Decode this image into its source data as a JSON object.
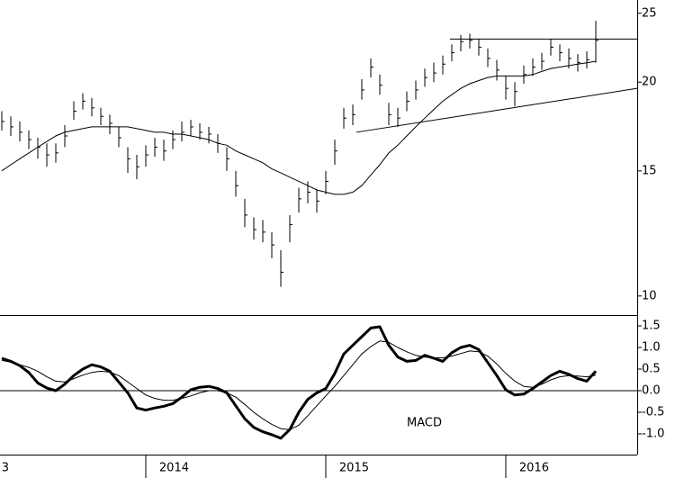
{
  "chart_data": [
    {
      "type": "ohlc",
      "log_scale": true,
      "color": "#000000",
      "ylim": [
        9.4,
        26.1
      ],
      "yticks": [
        10,
        15,
        20,
        25
      ],
      "xlim": [
        2013.19,
        2016.73
      ],
      "x": [
        2013.2,
        2013.25,
        2013.3,
        2013.35,
        2013.4,
        2013.45,
        2013.5,
        2013.55,
        2013.6,
        2013.65,
        2013.7,
        2013.75,
        2013.8,
        2013.85,
        2013.9,
        2013.95,
        2014.0,
        2014.05,
        2014.1,
        2014.15,
        2014.2,
        2014.25,
        2014.3,
        2014.35,
        2014.4,
        2014.45,
        2014.5,
        2014.55,
        2014.6,
        2014.65,
        2014.7,
        2014.75,
        2014.8,
        2014.85,
        2014.9,
        2014.95,
        2015.0,
        2015.05,
        2015.1,
        2015.15,
        2015.2,
        2015.25,
        2015.3,
        2015.35,
        2015.4,
        2015.45,
        2015.5,
        2015.55,
        2015.6,
        2015.65,
        2015.7,
        2015.75,
        2015.8,
        2015.85,
        2015.9,
        2015.95,
        2016.0,
        2016.05,
        2016.1,
        2016.15,
        2016.2,
        2016.25,
        2016.3,
        2016.35,
        2016.4,
        2016.45,
        2016.5
      ],
      "high": [
        18.2,
        17.9,
        17.6,
        17.1,
        16.7,
        16.4,
        16.4,
        17.4,
        18.8,
        19.3,
        19.0,
        18.4,
        18.0,
        17.3,
        16.2,
        15.8,
        16.3,
        16.7,
        16.6,
        17.1,
        17.6,
        17.7,
        17.5,
        17.3,
        16.9,
        16.2,
        15.0,
        13.7,
        12.9,
        12.8,
        12.3,
        11.6,
        13.0,
        14.2,
        14.5,
        14.1,
        15.0,
        16.6,
        18.4,
        18.6,
        20.2,
        21.6,
        20.5,
        18.7,
        18.4,
        19.4,
        20.1,
        20.9,
        21.3,
        21.8,
        22.6,
        23.3,
        23.4,
        23.0,
        22.3,
        21.5,
        20.4,
        20.0,
        21.1,
        21.6,
        22.0,
        23.0,
        22.6,
        22.3,
        21.9,
        22.1,
        24.4
      ],
      "low": [
        17.1,
        16.8,
        16.5,
        16.1,
        15.6,
        15.2,
        15.4,
        16.2,
        17.7,
        18.3,
        17.9,
        17.4,
        16.9,
        16.2,
        14.9,
        14.6,
        15.2,
        15.7,
        15.5,
        16.1,
        16.5,
        16.8,
        16.6,
        16.4,
        15.9,
        15.0,
        13.8,
        12.5,
        12.0,
        11.9,
        11.3,
        10.3,
        11.9,
        13.1,
        13.5,
        13.1,
        13.9,
        15.3,
        17.2,
        17.4,
        18.9,
        20.3,
        19.2,
        17.4,
        17.3,
        18.2,
        18.9,
        19.7,
        20.0,
        20.5,
        21.4,
        22.1,
        22.3,
        21.8,
        21.0,
        20.1,
        18.9,
        18.5,
        19.9,
        20.4,
        20.8,
        21.8,
        21.4,
        20.9,
        20.7,
        20.9,
        21.3
      ],
      "close": [
        17.6,
        17.3,
        17.0,
        16.6,
        16.2,
        15.8,
        15.9,
        16.8,
        18.2,
        18.8,
        18.4,
        17.9,
        17.5,
        16.7,
        15.6,
        15.2,
        15.8,
        16.2,
        16.0,
        16.6,
        17.0,
        17.3,
        17.0,
        16.9,
        16.4,
        15.6,
        14.3,
        13.0,
        12.4,
        12.3,
        11.8,
        10.8,
        12.6,
        13.7,
        14.0,
        13.6,
        14.5,
        16.0,
        17.8,
        18.0,
        19.5,
        21.0,
        19.8,
        18.0,
        17.8,
        18.8,
        19.5,
        20.3,
        20.6,
        21.2,
        22.0,
        22.8,
        22.9,
        22.4,
        21.6,
        20.8,
        19.6,
        19.4,
        20.5,
        21.0,
        21.4,
        22.4,
        22.0,
        21.6,
        21.3,
        21.5,
        22.9
      ],
      "ma": [
        15.0,
        15.3,
        15.6,
        15.9,
        16.2,
        16.5,
        16.8,
        17.0,
        17.1,
        17.2,
        17.3,
        17.3,
        17.3,
        17.3,
        17.3,
        17.2,
        17.1,
        17.0,
        17.0,
        16.9,
        16.9,
        16.8,
        16.7,
        16.6,
        16.4,
        16.3,
        16.0,
        15.8,
        15.6,
        15.4,
        15.1,
        14.9,
        14.7,
        14.5,
        14.3,
        14.1,
        14.0,
        13.9,
        13.9,
        14.0,
        14.3,
        14.8,
        15.3,
        15.9,
        16.3,
        16.8,
        17.3,
        17.8,
        18.3,
        18.8,
        19.2,
        19.6,
        19.9,
        20.1,
        20.3,
        20.4,
        20.4,
        20.4,
        20.4,
        20.5,
        20.7,
        20.9,
        21.0,
        21.1,
        21.2,
        21.3,
        21.4
      ],
      "trendlines": [
        {
          "x": [
            2015.69,
            2016.73
          ],
          "y": [
            23.0,
            23.0
          ]
        },
        {
          "x": [
            2015.17,
            2016.73
          ],
          "y": [
            17.0,
            19.6
          ]
        }
      ]
    },
    {
      "type": "line",
      "annotation": "MACD",
      "zero_line": true,
      "ylim": [
        -1.48,
        1.73
      ],
      "yticks": [
        1.5,
        {
          "value": 1,
          "label": "1.0"
        },
        {
          "value": 0.5,
          "label": "0.5"
        },
        {
          "value": 0,
          "label": "0.0"
        },
        -0.5,
        {
          "value": -1,
          "label": "-1.0"
        }
      ],
      "xticks": [
        {
          "value": 2013,
          "label": "3"
        },
        2014,
        2015,
        2016
      ],
      "series": [
        {
          "color": "#000000",
          "width": 3,
          "values": [
            0.75,
            0.68,
            0.58,
            0.42,
            0.18,
            0.06,
            0.0,
            0.15,
            0.35,
            0.5,
            0.6,
            0.55,
            0.45,
            0.2,
            -0.05,
            -0.4,
            -0.45,
            -0.4,
            -0.36,
            -0.3,
            -0.15,
            0.02,
            0.08,
            0.1,
            0.05,
            -0.05,
            -0.35,
            -0.65,
            -0.85,
            -0.95,
            -1.02,
            -1.1,
            -0.9,
            -0.5,
            -0.2,
            -0.05,
            0.05,
            0.4,
            0.85,
            1.05,
            1.25,
            1.45,
            1.48,
            1.05,
            0.78,
            0.68,
            0.7,
            0.82,
            0.75,
            0.68,
            0.88,
            1.0,
            1.05,
            0.95,
            0.65,
            0.35,
            0.02,
            -0.1,
            -0.08,
            0.05,
            0.2,
            0.35,
            0.45,
            0.38,
            0.28,
            0.22,
            0.45
          ]
        },
        {
          "color": "#000000",
          "width": 1,
          "values": [
            0.7,
            0.66,
            0.6,
            0.54,
            0.45,
            0.32,
            0.22,
            0.2,
            0.28,
            0.36,
            0.42,
            0.45,
            0.43,
            0.35,
            0.2,
            0.05,
            -0.1,
            -0.18,
            -0.22,
            -0.22,
            -0.18,
            -0.12,
            -0.05,
            0.0,
            0.0,
            -0.05,
            -0.15,
            -0.32,
            -0.5,
            -0.65,
            -0.78,
            -0.88,
            -0.9,
            -0.8,
            -0.58,
            -0.35,
            -0.12,
            0.1,
            0.35,
            0.6,
            0.85,
            1.02,
            1.15,
            1.12,
            1.0,
            0.9,
            0.82,
            0.78,
            0.76,
            0.76,
            0.8,
            0.86,
            0.92,
            0.9,
            0.8,
            0.62,
            0.4,
            0.22,
            0.1,
            0.08,
            0.15,
            0.25,
            0.32,
            0.35,
            0.34,
            0.32,
            0.36
          ]
        }
      ]
    }
  ]
}
